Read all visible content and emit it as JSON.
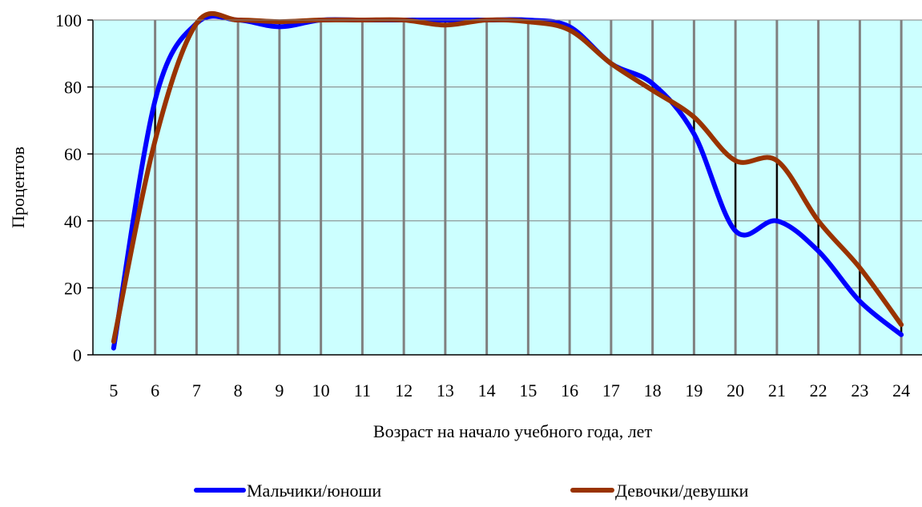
{
  "chart_data": {
    "type": "line",
    "title": "",
    "xlabel": "Возраст на начало учебного года, лет",
    "ylabel": "Процентов",
    "x": [
      5,
      6,
      7,
      8,
      9,
      10,
      11,
      12,
      13,
      14,
      15,
      16,
      17,
      18,
      19,
      20,
      21,
      22,
      23,
      24
    ],
    "ylim": [
      0,
      100
    ],
    "yticks": [
      0,
      20,
      40,
      60,
      80,
      100
    ],
    "grid": true,
    "legend_position": "bottom",
    "background_color": "#ccffff",
    "grid_color": "#808080",
    "series": [
      {
        "name": "Мальчики/юноши",
        "color": "#0000ff",
        "values": [
          2,
          76,
          99,
          100,
          98,
          100,
          100,
          100,
          100,
          100,
          100,
          98,
          87,
          81,
          66,
          37,
          40,
          31,
          16,
          6
        ]
      },
      {
        "name": "Девочки/девушки",
        "color": "#993300",
        "values": [
          4,
          64,
          99,
          100,
          99.5,
          100,
          100,
          100,
          98.5,
          100,
          99.5,
          97,
          87,
          79,
          71,
          58,
          58,
          40,
          26,
          9
        ]
      }
    ]
  }
}
